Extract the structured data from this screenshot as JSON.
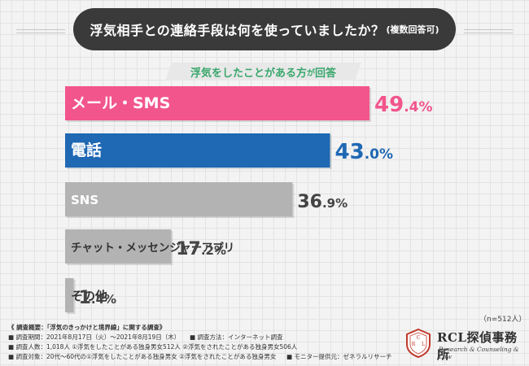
{
  "title": {
    "main": "浮気相手との連絡手段は何を使っていましたか？",
    "note": "(複数回答可)"
  },
  "subtitle": {
    "prefix": "浮気をしたことがある方",
    "small": "が",
    "suffix": "回答"
  },
  "chart_data": {
    "type": "bar",
    "orientation": "horizontal",
    "categories": [
      "メール・SMS",
      "電話",
      "SNS",
      "チャット・メッセンジャーアプリ",
      "その他"
    ],
    "values": [
      49.4,
      43.0,
      36.9,
      17.2,
      1.4
    ],
    "value_labels": [
      {
        "int": "49",
        "dec": ".4%"
      },
      {
        "int": "43",
        "dec": ".0%"
      },
      {
        "int": "36",
        "dec": ".9%"
      },
      {
        "int": "17",
        "dec": ".2%"
      },
      {
        "int": "1",
        "dec": ".4%"
      }
    ],
    "label_colors": [
      "#ffffff",
      "#ffffff",
      "#ffffff",
      "#333333",
      "#333333"
    ],
    "colors": [
      "#f2558c",
      "#1f68b4",
      "#b3b3b3",
      "#b3b3b3",
      "#b3b3b3"
    ],
    "value_colors": [
      "#f2558c",
      "#1f68b4",
      "#444444",
      "#444444",
      "#444444"
    ],
    "xlim": [
      0,
      50
    ],
    "title": "",
    "xlabel": "",
    "ylabel": "",
    "grid": false
  },
  "n_label": "（n=512人）",
  "footer": {
    "overview": "《 調査概要：「浮気のきっかけと境界線」に関する調査》",
    "period": "■ 調査期間：2021年8月17日（火）～2021年8月19日（木）",
    "method": "■ 調査方法：インターネット調査",
    "count": "■ 調査人数：1,018人 ①浮気をしたことがある独身男女512人 ②浮気をされたことがある独身男女506人",
    "target": "■ 調査対象：20代～60代の①浮気をしたことがある独身男女 ②浮気をされたことがある独身男女",
    "provider": "■ モニター提供元：ゼネラルリサーチ"
  },
  "brand": {
    "name": "RCL探偵事務所",
    "sub": "Research & Counseling & Law",
    "logo_letters": "C R L"
  }
}
